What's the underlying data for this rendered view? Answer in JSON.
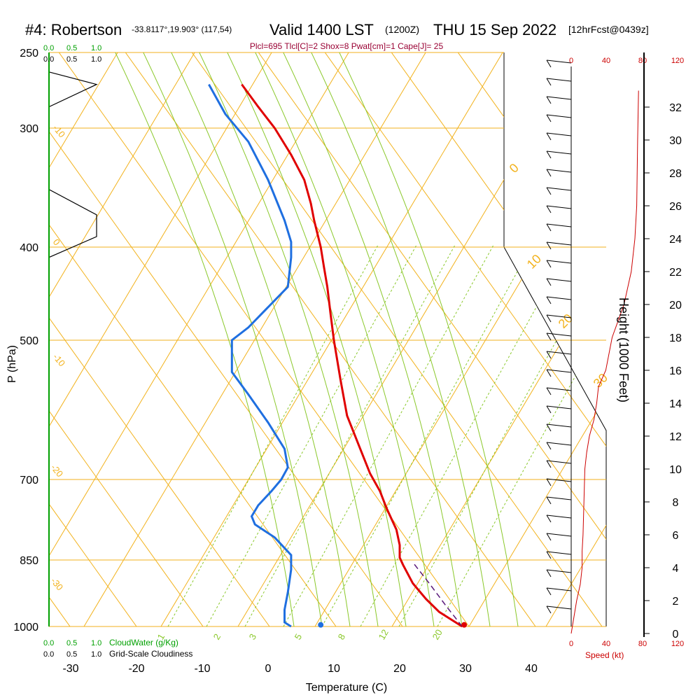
{
  "header": {
    "station": "#4: Robertson",
    "coords": "-33.8117°,19.903° (117,54)",
    "valid": "Valid 1400 LST",
    "utc": "(1200Z)",
    "date": "THU 15 Sep 2022",
    "forecast": "[12hrFcst@0439z]"
  },
  "indices": "Plcl=695 Tlcl[C]=2 Shox=8 Pwat[cm]=1 Cape[J]= 25",
  "colors": {
    "isobar": "#f2b21c",
    "isotherm": "#f2b21c",
    "dry_adiabat": "#f2b21c",
    "moist_adiabat": "#8ac82a",
    "mixing_ratio": "#8ac82a",
    "temperature": "#e00000",
    "dewpoint": "#1f6fe0",
    "parcel": "#5a1a7a",
    "cloud": "#000000",
    "speed": "#cc0000",
    "cloud_axis": "#00a000",
    "title": "#000000",
    "indices": "#990033"
  },
  "cloud_axis": {
    "water_ticks": [
      "0.0",
      "0.5",
      "1.0"
    ],
    "cover_ticks": [
      "0.0",
      "0.5",
      "1.0"
    ],
    "water_label": "CloudWater (g/Kg)",
    "cover_label": "Grid-Scale Cloudiness"
  },
  "speed_axis": {
    "ticks": [
      "0",
      "40",
      "80",
      "120"
    ],
    "label": "Speed (kt)"
  },
  "height_axis": {
    "label": "Height (1000 Feet)",
    "ticks": [
      "0",
      "2",
      "4",
      "6",
      "8",
      "10",
      "12",
      "14",
      "16",
      "18",
      "20",
      "22",
      "24",
      "26",
      "28",
      "30",
      "32"
    ]
  },
  "chart_data": {
    "type": "line",
    "title": "#4: Robertson Valid 1400 LST (1200Z) THU 15 Sep 2022",
    "xlabel": "Temperature (C)",
    "ylabel": "P (hPa)",
    "xlim": [
      -33,
      36
    ],
    "ylim": [
      1000,
      250
    ],
    "x_ticks": [
      "-30",
      "-20",
      "-10",
      "0",
      "10",
      "20",
      "30",
      "40"
    ],
    "y_ticks": [
      "250",
      "300",
      "400",
      "500",
      "700",
      "850",
      "1000"
    ],
    "isobars": [
      250,
      300,
      400,
      500,
      700,
      850,
      1000
    ],
    "dry_adiabat_labels": [
      "0",
      "10",
      "20",
      "30"
    ],
    "isotherm_labels": [
      "-10",
      "0",
      "-10",
      "-20",
      "-30"
    ],
    "mixing_ratio_labels": [
      "1",
      "2",
      "3",
      "5",
      "8",
      "12",
      "20"
    ],
    "series": [
      {
        "name": "temperature",
        "x": [
          29.5,
          26,
          24,
          22,
          20.5,
          20,
          20,
          19.5,
          18,
          17,
          15.5,
          14,
          12,
          11,
          10,
          9.5,
          9,
          8.5,
          8,
          7,
          6.5,
          5.5,
          3.5,
          1,
          -1.5,
          -4
        ],
        "y": [
          1000,
          965,
          935,
          900,
          860,
          845,
          820,
          790,
          750,
          720,
          690,
          650,
          600,
          550,
          500,
          470,
          440,
          420,
          400,
          375,
          360,
          340,
          320,
          300,
          285,
          270
        ]
      },
      {
        "name": "dewpoint",
        "x": [
          3.5,
          2.5,
          2.5,
          3,
          3.5,
          3.5,
          1,
          -2,
          -2.5,
          -1.5,
          0.5,
          2,
          3,
          2.5,
          0,
          -3,
          -5.5,
          -5.5,
          -3,
          3,
          3.5,
          3.5,
          2.5,
          0,
          -3,
          -6.5,
          -9
        ],
        "y": [
          1000,
          990,
          960,
          920,
          870,
          840,
          805,
          780,
          765,
          745,
          720,
          700,
          680,
          650,
          610,
          570,
          540,
          500,
          485,
          440,
          410,
          395,
          375,
          340,
          310,
          290,
          270
        ]
      },
      {
        "name": "parcel",
        "x": [
          29.5,
          27,
          24.5,
          22
        ],
        "y": [
          1000,
          950,
          900,
          855
        ]
      },
      {
        "name": "cloud_fraction",
        "x": [
          0.0,
          0.0,
          0.5,
          0.5,
          0.0,
          0.0,
          0.0,
          0.5,
          0.0
        ],
        "y": [
          430,
          410,
          390,
          370,
          348,
          300,
          285,
          270,
          262
        ]
      }
    ],
    "surface_points": [
      {
        "name": "temperature",
        "x": 29.8,
        "y": 996
      },
      {
        "name": "dewpoint",
        "x": 8,
        "y": 996
      }
    ],
    "speed_profile": {
      "speed_kt": [
        0,
        3,
        6,
        10,
        12,
        12,
        13,
        14,
        15,
        17,
        20,
        25,
        28,
        30,
        38,
        45,
        58,
        66,
        70,
        72,
        73,
        74
      ],
      "height_kft": [
        0,
        1,
        2,
        3,
        4,
        5,
        6,
        8,
        10,
        11,
        12,
        13,
        14,
        15,
        16,
        18,
        20,
        22,
        24,
        26,
        30,
        33
      ]
    },
    "wind_barbs_count": 31
  }
}
